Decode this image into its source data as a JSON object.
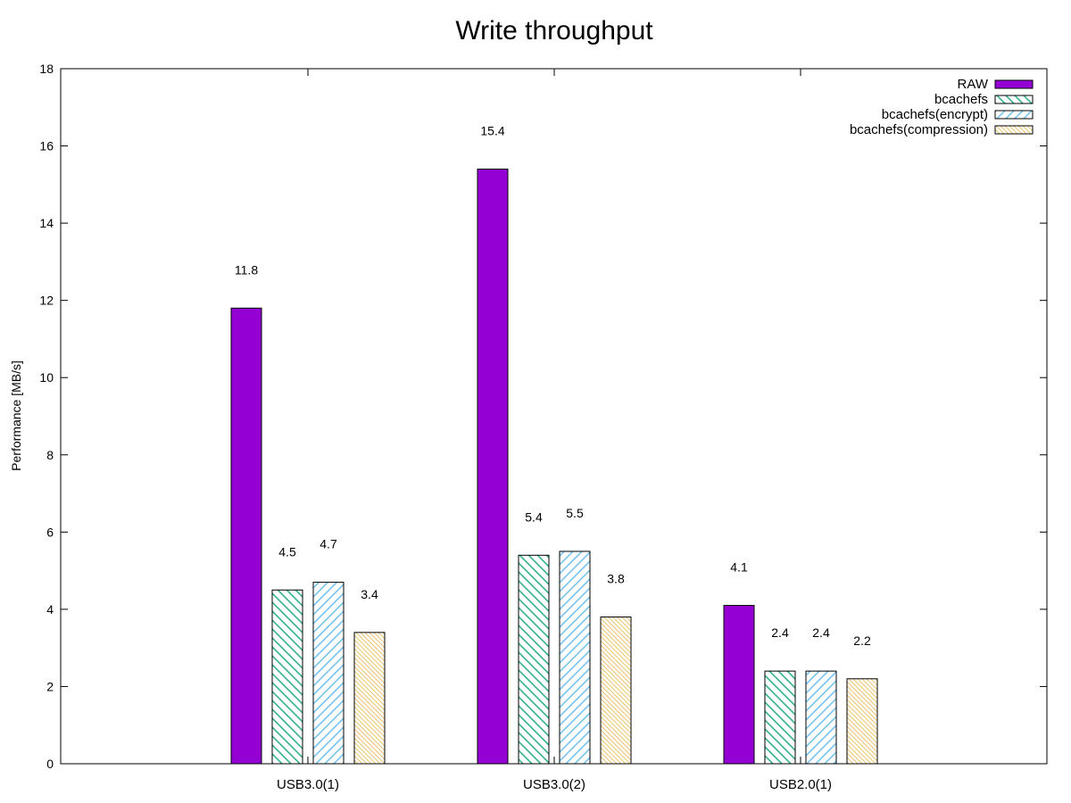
{
  "chart_data": {
    "type": "bar",
    "title": "Write throughput",
    "xlabel": "",
    "ylabel": "Performance [MB/s]",
    "ylim": [
      0,
      18
    ],
    "yticks": [
      0,
      2,
      4,
      6,
      8,
      10,
      12,
      14,
      16,
      18
    ],
    "categories": [
      "USB3.0(1)",
      "USB3.0(2)",
      "USB2.0(1)"
    ],
    "series": [
      {
        "name": "RAW",
        "values": [
          11.8,
          15.4,
          4.1
        ],
        "labels": [
          "11.8",
          "15.4",
          "4.1"
        ],
        "color": "#9400d3",
        "pattern": "solid"
      },
      {
        "name": "bcachefs",
        "values": [
          4.5,
          5.4,
          2.4
        ],
        "labels": [
          "4.5",
          "5.4",
          "2.4"
        ],
        "color": "#009e73",
        "pattern": "hatch-back"
      },
      {
        "name": "bcachefs(encrypt)",
        "values": [
          4.7,
          5.5,
          2.4
        ],
        "labels": [
          "4.7",
          "5.5",
          "2.4"
        ],
        "color": "#56b4e9",
        "pattern": "hatch-forward"
      },
      {
        "name": "bcachefs(compression)",
        "values": [
          3.4,
          3.8,
          2.2
        ],
        "labels": [
          "3.4",
          "3.8",
          "2.2"
        ],
        "color": "#e6b44a",
        "pattern": "hatch-dense"
      }
    ],
    "grid": false,
    "legend_position": "top-right"
  }
}
